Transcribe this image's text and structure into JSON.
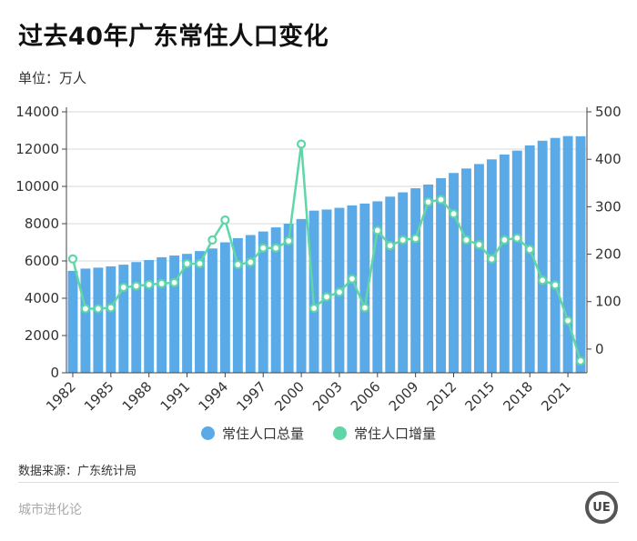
{
  "header": {
    "title": "过去40年广东常住人口变化",
    "unit": "单位：万人"
  },
  "legend": {
    "total_label": "常住人口总量",
    "increment_label": "常住人口增量"
  },
  "footer": {
    "source": "数据来源：广东统计局",
    "brand": "城市进化论",
    "logo_text": "UE"
  },
  "colors": {
    "bar": "#5AAAE8",
    "line": "#5FD6A5",
    "marker_fill": "#ffffff"
  },
  "chart_data": {
    "type": "bar",
    "title": "过去40年广东常住人口变化",
    "x": [
      1982,
      1983,
      1984,
      1985,
      1986,
      1987,
      1988,
      1989,
      1990,
      1991,
      1992,
      1993,
      1994,
      1995,
      1996,
      1997,
      1998,
      1999,
      2000,
      2001,
      2002,
      2003,
      2004,
      2005,
      2006,
      2007,
      2008,
      2009,
      2010,
      2011,
      2012,
      2013,
      2014,
      2015,
      2016,
      2017,
      2018,
      2019,
      2020,
      2021,
      2022
    ],
    "x_tick_labels": [
      "1982",
      "1985",
      "1988",
      "1991",
      "1994",
      "1997",
      "2000",
      "2003",
      "2006",
      "2009",
      "2012",
      "2015",
      "2018",
      "2021"
    ],
    "series": [
      {
        "name": "常住人口总量",
        "type": "bar",
        "axis": "left",
        "values": [
          5470,
          5590,
          5640,
          5710,
          5800,
          5940,
          6050,
          6200,
          6290,
          6380,
          6530,
          6670,
          7000,
          7220,
          7390,
          7580,
          7800,
          8000,
          8250,
          8700,
          8760,
          8850,
          8980,
          9080,
          9200,
          9450,
          9680,
          9900,
          10100,
          10440,
          10720,
          10960,
          11200,
          11450,
          11710,
          11920,
          12200,
          12450,
          12600,
          12700,
          12690
        ]
      },
      {
        "name": "常住人口增量",
        "type": "line",
        "axis": "right",
        "values": [
          190,
          85,
          85,
          87,
          130,
          133,
          136,
          138,
          140,
          180,
          180,
          230,
          272,
          178,
          183,
          213,
          213,
          228,
          432,
          86,
          110,
          120,
          148,
          87,
          250,
          218,
          230,
          233,
          310,
          315,
          285,
          230,
          220,
          190,
          230,
          234,
          210,
          145,
          135,
          60,
          -25
        ]
      }
    ],
    "y_left": {
      "ticks": [
        0,
        2000,
        4000,
        6000,
        8000,
        10000,
        12000,
        14000
      ],
      "ylim": [
        0,
        14000
      ]
    },
    "y_right": {
      "ticks": [
        0,
        100,
        200,
        300,
        400,
        500
      ],
      "ylim": [
        -50,
        500
      ]
    },
    "grid": true,
    "legend_position": "bottom-center"
  }
}
